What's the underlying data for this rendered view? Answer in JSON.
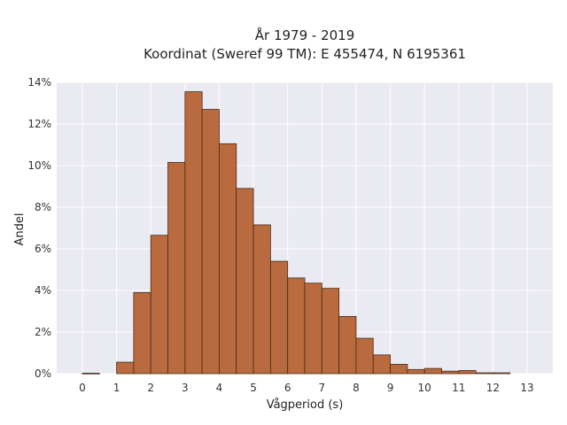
{
  "chart_data": {
    "type": "bar",
    "title_lines": [
      "År 1979 - 2019",
      "Koordinat (Sweref 99 TM): E 455474, N 6195361"
    ],
    "xlabel": "Vågperiod (s)",
    "ylabel": "Andel",
    "xlim": [
      -0.75,
      13.75
    ],
    "ylim": [
      0,
      14
    ],
    "x_ticks": [
      0,
      1,
      2,
      3,
      4,
      5,
      6,
      7,
      8,
      9,
      10,
      11,
      12,
      13
    ],
    "y_ticks": [
      0,
      2,
      4,
      6,
      8,
      10,
      12,
      14
    ],
    "y_tick_labels": [
      "0%",
      "2%",
      "4%",
      "6%",
      "8%",
      "10%",
      "12%",
      "14%"
    ],
    "grid": true,
    "bar_width": 0.5,
    "bars": [
      {
        "x": 0.25,
        "value": 0.02
      },
      {
        "x": 0.75,
        "value": 0.0
      },
      {
        "x": 1.25,
        "value": 0.55
      },
      {
        "x": 1.75,
        "value": 3.9
      },
      {
        "x": 2.25,
        "value": 6.65
      },
      {
        "x": 2.75,
        "value": 10.15
      },
      {
        "x": 3.25,
        "value": 13.55
      },
      {
        "x": 3.75,
        "value": 12.7
      },
      {
        "x": 4.25,
        "value": 11.05
      },
      {
        "x": 4.75,
        "value": 8.9
      },
      {
        "x": 5.25,
        "value": 7.15
      },
      {
        "x": 5.75,
        "value": 5.4
      },
      {
        "x": 6.25,
        "value": 4.6
      },
      {
        "x": 6.75,
        "value": 4.35
      },
      {
        "x": 7.25,
        "value": 4.1
      },
      {
        "x": 7.75,
        "value": 2.75
      },
      {
        "x": 8.25,
        "value": 1.7
      },
      {
        "x": 8.75,
        "value": 0.9
      },
      {
        "x": 9.25,
        "value": 0.45
      },
      {
        "x": 9.75,
        "value": 0.2
      },
      {
        "x": 10.25,
        "value": 0.25
      },
      {
        "x": 10.75,
        "value": 0.12
      },
      {
        "x": 11.25,
        "value": 0.15
      },
      {
        "x": 11.75,
        "value": 0.04
      },
      {
        "x": 12.25,
        "value": 0.04
      }
    ],
    "colors": {
      "bar_fill": "#b96a3e",
      "bar_edge": "#4a2a18",
      "plot_background": "#eaeaf2"
    }
  }
}
